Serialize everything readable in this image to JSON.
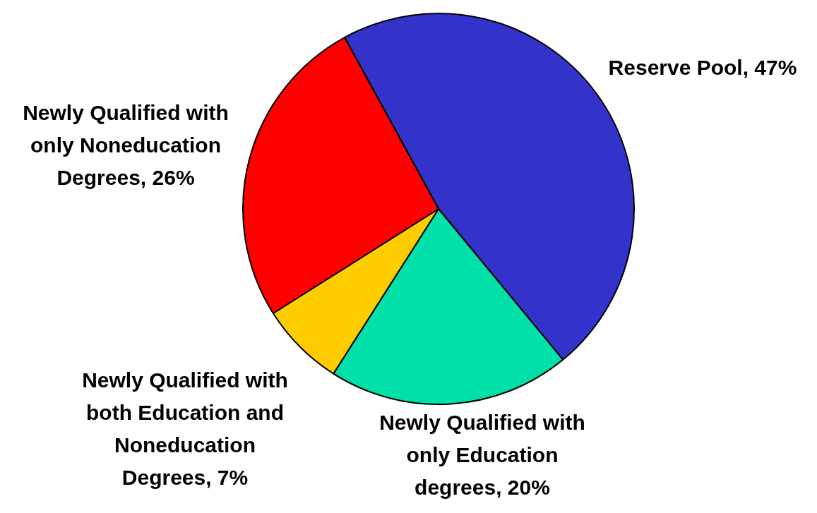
{
  "chart_data": {
    "type": "pie",
    "categories": [
      "Reserve Pool",
      "Newly Qualified with only Education degrees",
      "Newly Qualified with both Education and Noneducation Degrees",
      "Newly Qualified with only Noneducation Degrees"
    ],
    "values": [
      47,
      20,
      7,
      26
    ],
    "value_labels": [
      "47%",
      "20%",
      "7%",
      "26%"
    ],
    "colors": [
      "#3333cc",
      "#00e0a8",
      "#ffcc00",
      "#ff0000"
    ],
    "legend": false
  }
}
